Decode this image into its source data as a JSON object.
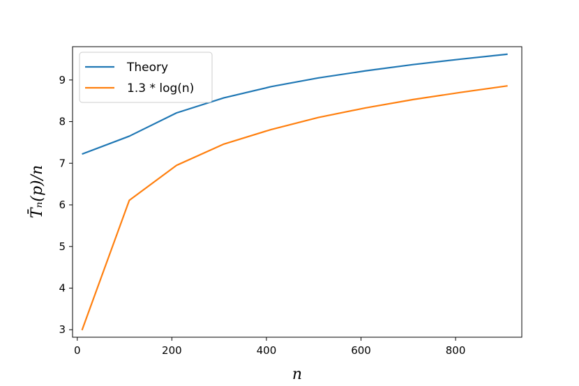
{
  "chart_data": {
    "type": "line",
    "xlabel": "n",
    "ylabel": "T̄ₙ(p)/n",
    "xlim": [
      -10,
      940
    ],
    "ylim": [
      2.82,
      9.8
    ],
    "x_ticks": [
      0,
      200,
      400,
      600,
      800
    ],
    "y_ticks": [
      3,
      4,
      5,
      6,
      7,
      8,
      9
    ],
    "legend_position": "top-left",
    "grid": false,
    "x": [
      10,
      110,
      210,
      310,
      410,
      510,
      610,
      710,
      810,
      910
    ],
    "series": [
      {
        "name": "Theory",
        "color": "#1f77b4",
        "values": [
          7.22,
          7.65,
          8.21,
          8.57,
          8.84,
          9.05,
          9.22,
          9.37,
          9.5,
          9.62
        ]
      },
      {
        "name": "1.3 * log(n)",
        "color": "#ff7f0e",
        "values": [
          2.99,
          6.11,
          6.95,
          7.46,
          7.81,
          8.1,
          8.33,
          8.53,
          8.7,
          8.86
        ]
      }
    ]
  }
}
